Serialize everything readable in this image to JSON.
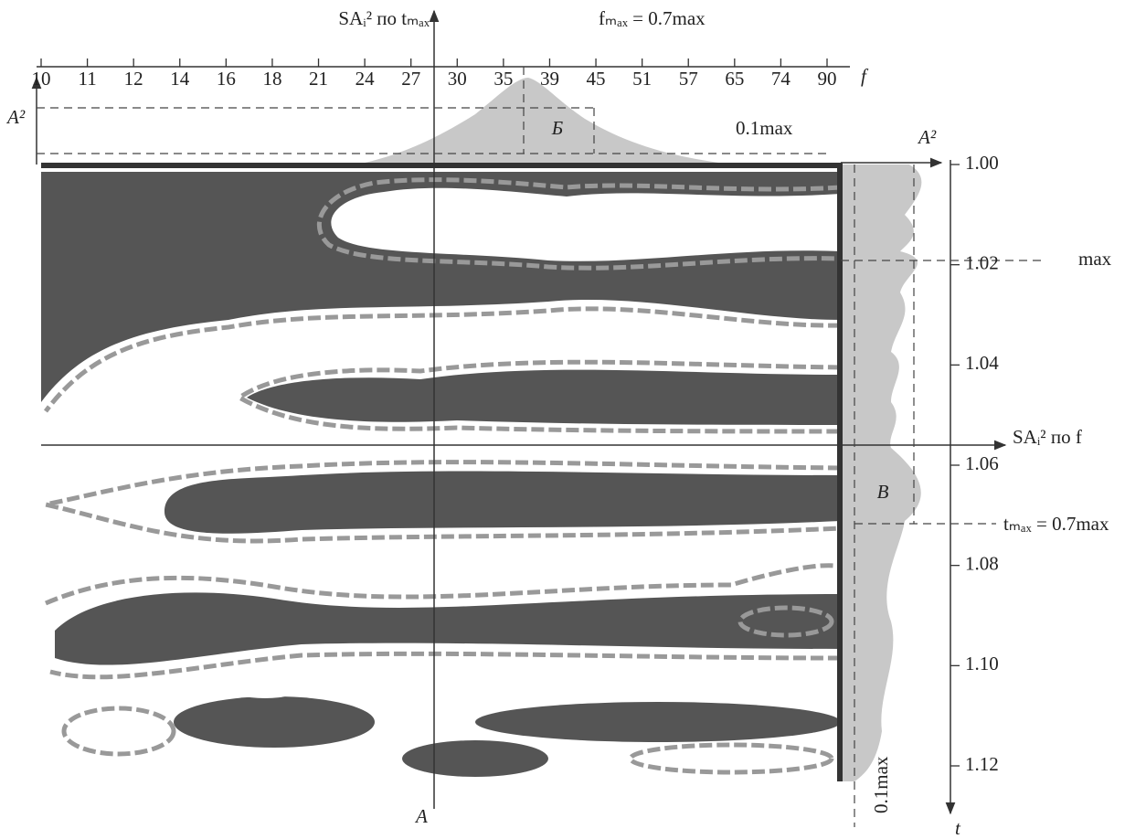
{
  "chart_data": {
    "type": "spectrogram",
    "categories": [
      10,
      11,
      12,
      14,
      16,
      18,
      21,
      24,
      27,
      30,
      35,
      39,
      45,
      51,
      57,
      65,
      74,
      90
    ],
    "x_label": "f",
    "y_label": "t",
    "ylim": [
      1.0,
      1.123
    ],
    "yticks": [
      {
        "value": 1.0,
        "label": "1.00"
      },
      1.02,
      1.04,
      1.06,
      1.08,
      {
        "value": 1.1,
        "label": "1.10"
      },
      1.12
    ],
    "annotations": {
      "top_axis": "SAᵢ² по tₘₐₓ",
      "f_level": "fₘₐₓ = 0.7max",
      "top_amplitude": "A²",
      "top_region": "Б",
      "top_threshold": "0.1max",
      "right_amplitude": "A²",
      "max": "max",
      "right_axis": "SAᵢ² по f",
      "right_region": "В",
      "t_level": "tₘₐₓ = 0.7max",
      "right_threshold": "0.1max",
      "cross": "A"
    }
  }
}
